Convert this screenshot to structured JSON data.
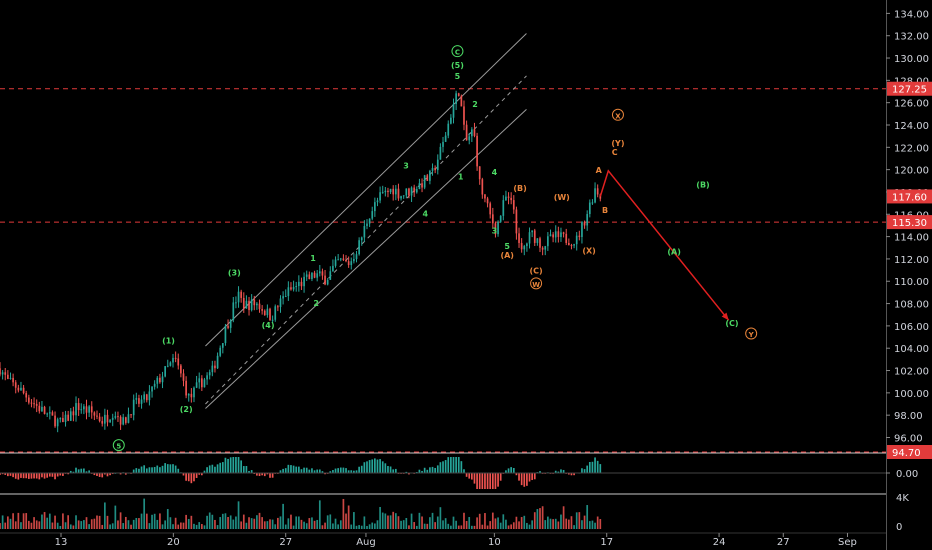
{
  "chart_data": {
    "type": "candlestick",
    "title": "",
    "y_axis": {
      "ticks": [
        96,
        98,
        100,
        102,
        104,
        106,
        108,
        110,
        112,
        114,
        116,
        118,
        120,
        122,
        124,
        126,
        128,
        130,
        132,
        134
      ],
      "range": [
        94.7,
        135.2
      ]
    },
    "x_axis": {
      "ticks": [
        {
          "label": "13",
          "day": 13
        },
        {
          "label": "20",
          "day": 20
        },
        {
          "label": "27",
          "day": 27
        },
        {
          "label": "Aug",
          "day": 32
        },
        {
          "label": "10",
          "day": 40
        },
        {
          "label": "17",
          "day": 47
        },
        {
          "label": "24",
          "day": 54
        },
        {
          "label": "27",
          "day": 58
        },
        {
          "label": "Sep",
          "day": 62
        }
      ],
      "range": [
        9.2,
        64.4
      ]
    },
    "price_levels": [
      {
        "value": 127.25,
        "label": "127.25",
        "color": "#e23b3b"
      },
      {
        "value": 115.3,
        "label": "115.30",
        "color": "#e23b3b"
      },
      {
        "value": 94.7,
        "label": "94.70",
        "color": "#e23b3b"
      }
    ],
    "last_price": {
      "value": 117.6,
      "label": "117.60",
      "color": "#e23b3b"
    },
    "anchors": [
      [
        9.2,
        102.2
      ],
      [
        9.7,
        101.0
      ],
      [
        10.3,
        100.5
      ],
      [
        11.2,
        99.2
      ],
      [
        12.3,
        97.8
      ],
      [
        13.1,
        97.2
      ],
      [
        14.0,
        98.8
      ],
      [
        14.8,
        98.3
      ],
      [
        15.6,
        97.5
      ],
      [
        16.3,
        98.4
      ],
      [
        16.9,
        97.3
      ],
      [
        17.5,
        98.9
      ],
      [
        18.3,
        99.4
      ],
      [
        19.3,
        101.6
      ],
      [
        20.1,
        103.0
      ],
      [
        20.5,
        101.5
      ],
      [
        21.0,
        99.4
      ],
      [
        21.6,
        100.8
      ],
      [
        22.4,
        101.8
      ],
      [
        23.2,
        105.5
      ],
      [
        24.0,
        108.8
      ],
      [
        24.4,
        107.9
      ],
      [
        25.2,
        108.0
      ],
      [
        26.1,
        106.8
      ],
      [
        27.0,
        108.9
      ],
      [
        27.9,
        109.8
      ],
      [
        28.9,
        110.6
      ],
      [
        29.5,
        110.2
      ],
      [
        30.3,
        111.8
      ],
      [
        31.0,
        111.6
      ],
      [
        31.6,
        113.4
      ],
      [
        32.2,
        116.0
      ],
      [
        32.9,
        117.6
      ],
      [
        33.7,
        118.3
      ],
      [
        34.2,
        117.7
      ],
      [
        35.2,
        118.5
      ],
      [
        36.1,
        119.5
      ],
      [
        36.8,
        122.3
      ],
      [
        37.4,
        125.6
      ],
      [
        37.8,
        127.2
      ],
      [
        38.2,
        122.4
      ],
      [
        38.7,
        123.6
      ],
      [
        39.1,
        118.6
      ],
      [
        39.7,
        116.0
      ],
      [
        40.1,
        114.6
      ],
      [
        40.7,
        117.5
      ],
      [
        41.2,
        116.6
      ],
      [
        41.6,
        112.3
      ],
      [
        42.3,
        114.3
      ],
      [
        43.0,
        113.2
      ],
      [
        43.7,
        114.0
      ],
      [
        44.5,
        113.8
      ],
      [
        45.1,
        113.6
      ],
      [
        45.7,
        115.8
      ],
      [
        46.3,
        118.4
      ],
      [
        46.6,
        117.6
      ]
    ],
    "oscillator": {
      "label": "0.00"
    },
    "volume": {
      "label": "4K",
      "zero_label": "0"
    },
    "projection": {
      "color": "#e02020",
      "points": [
        [
          46.6,
          117.6
        ],
        [
          47.1,
          119.9
        ],
        [
          54.6,
          106.5
        ]
      ]
    },
    "channel": {
      "color": "#9a9a9a",
      "lines": [
        {
          "from": [
            22.0,
            104.2
          ],
          "to": [
            42.0,
            132.2
          ],
          "dashed": false
        },
        {
          "from": [
            22.0,
            99.0
          ],
          "to": [
            42.0,
            128.4
          ],
          "dashed": true
        },
        {
          "from": [
            22.0,
            98.6
          ],
          "to": [
            42.0,
            125.4
          ],
          "dashed": false
        }
      ]
    },
    "wave_labels": [
      {
        "text": "C",
        "x": 37.7,
        "y": 130.3,
        "color": "#4cd964",
        "circled": true
      },
      {
        "text": "(5)",
        "x": 37.7,
        "y": 129.1,
        "color": "#4cd964"
      },
      {
        "text": "5",
        "x": 37.7,
        "y": 128.1,
        "color": "#4cd964"
      },
      {
        "text": "2",
        "x": 38.8,
        "y": 125.6,
        "color": "#4cd964"
      },
      {
        "text": "1",
        "x": 37.9,
        "y": 119.1,
        "color": "#4cd964"
      },
      {
        "text": "4",
        "x": 40.0,
        "y": 119.5,
        "color": "#4cd964"
      },
      {
        "text": "3",
        "x": 40.0,
        "y": 114.3,
        "color": "#4cd964"
      },
      {
        "text": "5",
        "x": 40.8,
        "y": 112.9,
        "color": "#4cd964"
      },
      {
        "text": "(1)",
        "x": 19.7,
        "y": 104.4,
        "color": "#4cd964"
      },
      {
        "text": "(2)",
        "x": 20.8,
        "y": 98.3,
        "color": "#4cd964"
      },
      {
        "text": "(3)",
        "x": 23.8,
        "y": 110.5,
        "color": "#4cd964"
      },
      {
        "text": "(4)",
        "x": 25.9,
        "y": 105.8,
        "color": "#4cd964"
      },
      {
        "text": "1",
        "x": 28.7,
        "y": 111.8,
        "color": "#4cd964"
      },
      {
        "text": "2",
        "x": 28.9,
        "y": 107.8,
        "color": "#4cd964"
      },
      {
        "text": "3",
        "x": 34.5,
        "y": 120.1,
        "color": "#4cd964"
      },
      {
        "text": "4",
        "x": 35.7,
        "y": 115.8,
        "color": "#4cd964"
      },
      {
        "text": "5",
        "x": 16.6,
        "y": 95.0,
        "color": "#4cd964",
        "circled": true
      },
      {
        "text": "(B)",
        "x": 41.6,
        "y": 118.1,
        "color": "#e8843a"
      },
      {
        "text": "(A)",
        "x": 40.8,
        "y": 112.1,
        "color": "#e8843a"
      },
      {
        "text": "(W)",
        "x": 44.2,
        "y": 117.3,
        "color": "#e8843a"
      },
      {
        "text": "(C)",
        "x": 42.6,
        "y": 110.7,
        "color": "#e8843a"
      },
      {
        "text": "W",
        "x": 42.6,
        "y": 109.5,
        "color": "#e8843a",
        "circled": true
      },
      {
        "text": "(X)",
        "x": 45.9,
        "y": 112.5,
        "color": "#e8843a"
      },
      {
        "text": "A",
        "x": 46.5,
        "y": 119.7,
        "color": "#e8843a"
      },
      {
        "text": "B",
        "x": 46.9,
        "y": 116.1,
        "color": "#e8843a"
      },
      {
        "text": "X",
        "x": 47.7,
        "y": 124.6,
        "color": "#e8843a",
        "circled": true
      },
      {
        "text": "(Y)",
        "x": 47.7,
        "y": 122.1,
        "color": "#e8843a"
      },
      {
        "text": "C",
        "x": 47.5,
        "y": 121.3,
        "color": "#e8843a"
      },
      {
        "text": "(B)",
        "x": 53.0,
        "y": 118.4,
        "color": "#4cd964"
      },
      {
        "text": "(A)",
        "x": 51.2,
        "y": 112.4,
        "color": "#4cd964"
      },
      {
        "text": "(C)",
        "x": 54.8,
        "y": 106.0,
        "color": "#4cd964"
      },
      {
        "text": "Y",
        "x": 56.0,
        "y": 105.0,
        "color": "#e8843a",
        "circled": true
      }
    ],
    "colors": {
      "up": "#26a69a",
      "down": "#ef5350",
      "axis_text": "#d1d4dc",
      "divider": "#c8c8c8"
    }
  }
}
